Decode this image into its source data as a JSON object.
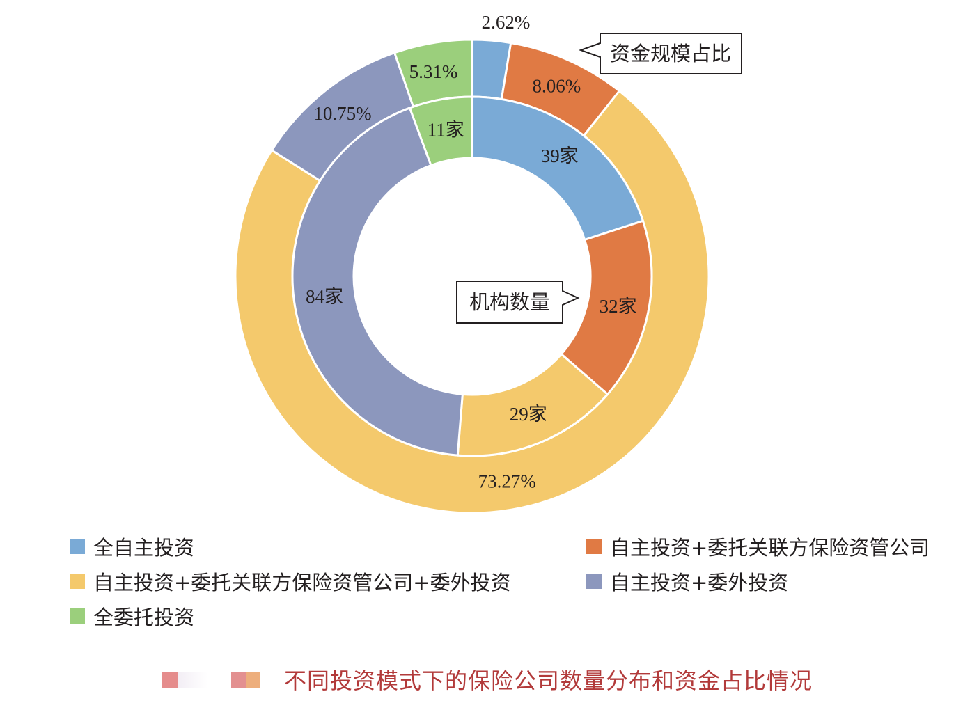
{
  "chart_data": {
    "type": "donut",
    "rings": [
      {
        "name": "机构数量",
        "categories": [
          "全自主投资",
          "自主投资+委托关联方保险资管公司",
          "自主投资+委托关联方保险资管公司+委外投资",
          "自主投资+委外投资",
          "全委托投资"
        ],
        "values": [
          39,
          32,
          29,
          84,
          11
        ],
        "labels": [
          "39家",
          "32家",
          "29家",
          "84家",
          "11家"
        ]
      },
      {
        "name": "资金规模占比",
        "categories": [
          "全自主投资",
          "自主投资+委托关联方保险资管公司",
          "自主投资+委托关联方保险资管公司+委外投资",
          "自主投资+委外投资",
          "全委托投资"
        ],
        "values": [
          2.62,
          8.06,
          73.27,
          10.75,
          5.31
        ],
        "labels": [
          "2.62%",
          "8.06%",
          "73.27%",
          "10.75%",
          "5.31%"
        ]
      }
    ],
    "colors": [
      "#7aaad6",
      "#e07a44",
      "#f4c96c",
      "#8c97bd",
      "#9bcf7c"
    ],
    "legend": [
      "全自主投资",
      "自主投资+委托关联方保险资管公司",
      "自主投资+委托关联方保险资管公司+委外投资",
      "自主投资+委外投资",
      "全委托投资"
    ],
    "legend_position": "bottom",
    "callouts": [
      "资金规模占比",
      "机构数量"
    ]
  },
  "caption": {
    "text": "不同投资模式下的保险公司数量分布和资金占比情况",
    "color": "#b23a3a"
  }
}
